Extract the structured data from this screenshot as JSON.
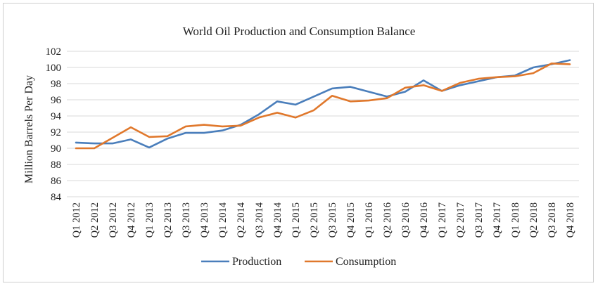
{
  "chart_data": {
    "type": "line",
    "title": "World Oil Production and Consumption Balance",
    "ylabel": "Million Barrels Per Day",
    "xlabel": "",
    "ylim": [
      84,
      102
    ],
    "yticks": [
      84,
      86,
      88,
      90,
      92,
      94,
      96,
      98,
      100,
      102
    ],
    "grid": true,
    "legend": "bottom",
    "categories": [
      "Q1 2012",
      "Q2 2012",
      "Q3 2012",
      "Q4 2012",
      "Q1 2013",
      "Q2 2013",
      "Q3 2013",
      "Q4 2013",
      "Q1 2014",
      "Q2 2014",
      "Q3 2014",
      "Q4 2014",
      "Q1 2015",
      "Q2 2015",
      "Q3 2015",
      "Q4 2015",
      "Q1 2016",
      "Q2 2016",
      "Q3 2016",
      "Q4 2016",
      "Q1 2017",
      "Q2 2017",
      "Q3 2017",
      "Q4 2017",
      "Q1 2018",
      "Q2 2018",
      "Q3 2018",
      "Q4 2018"
    ],
    "series": [
      {
        "name": "Production",
        "color": "#4a7ebb",
        "values": [
          90.7,
          90.6,
          90.6,
          91.1,
          90.1,
          91.2,
          91.9,
          91.9,
          92.2,
          92.9,
          94.2,
          95.8,
          95.4,
          96.4,
          97.4,
          97.6,
          97.0,
          96.4,
          97.0,
          98.4,
          97.1,
          97.8,
          98.3,
          98.8,
          99.0,
          100.0,
          100.4,
          100.9
        ]
      },
      {
        "name": "Consumption",
        "color": "#e0782c",
        "values": [
          90.0,
          90.0,
          91.3,
          92.6,
          91.4,
          91.5,
          92.7,
          92.9,
          92.7,
          92.8,
          93.8,
          94.4,
          93.8,
          94.7,
          96.5,
          95.8,
          95.9,
          96.2,
          97.5,
          97.8,
          97.1,
          98.1,
          98.6,
          98.8,
          98.9,
          99.3,
          100.5,
          100.4
        ]
      }
    ]
  }
}
